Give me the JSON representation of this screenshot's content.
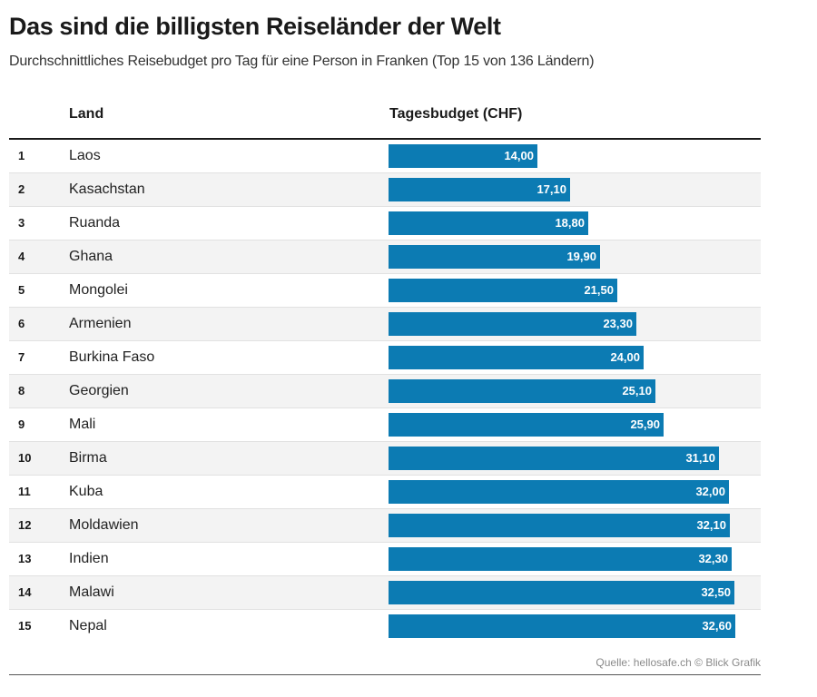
{
  "title": "Das sind die billigsten Reiseländer der Welt",
  "subtitle": "Durchschnittliches Reisebudget pro Tag für eine Person in Franken (Top 15 von 136 Ländern)",
  "columns": {
    "land": "Land",
    "budget": "Tagesbudget (CHF)"
  },
  "source": "Quelle: hellosafe.ch © Blick Grafik",
  "colors": {
    "bar": "#0c7bb3",
    "label": "#ffffff"
  },
  "chart_data": {
    "type": "bar",
    "orientation": "horizontal",
    "title": "Das sind die billigsten Reiseländer der Welt",
    "subtitle": "Durchschnittliches Reisebudget pro Tag für eine Person in Franken (Top 15 von 136 Ländern)",
    "xlabel": "Tagesbudget (CHF)",
    "ylabel": "Land",
    "xlim": [
      0,
      35
    ],
    "grid": false,
    "legend": "none",
    "categories": [
      "Laos",
      "Kasachstan",
      "Ruanda",
      "Ghana",
      "Mongolei",
      "Armenien",
      "Burkina Faso",
      "Georgien",
      "Mali",
      "Birma",
      "Kuba",
      "Moldawien",
      "Indien",
      "Malawi",
      "Nepal"
    ],
    "values": [
      14.0,
      17.1,
      18.8,
      19.9,
      21.5,
      23.3,
      24.0,
      25.1,
      25.9,
      31.1,
      32.0,
      32.1,
      32.3,
      32.5,
      32.6
    ],
    "ranks": [
      "1",
      "2",
      "3",
      "4",
      "5",
      "6",
      "7",
      "8",
      "9",
      "10",
      "11",
      "12",
      "13",
      "14",
      "15"
    ],
    "labels": [
      "14,00",
      "17,10",
      "18,80",
      "19,90",
      "21,50",
      "23,30",
      "24,00",
      "25,10",
      "25,90",
      "31,10",
      "32,00",
      "32,10",
      "32,30",
      "32,50",
      "32,60"
    ]
  }
}
